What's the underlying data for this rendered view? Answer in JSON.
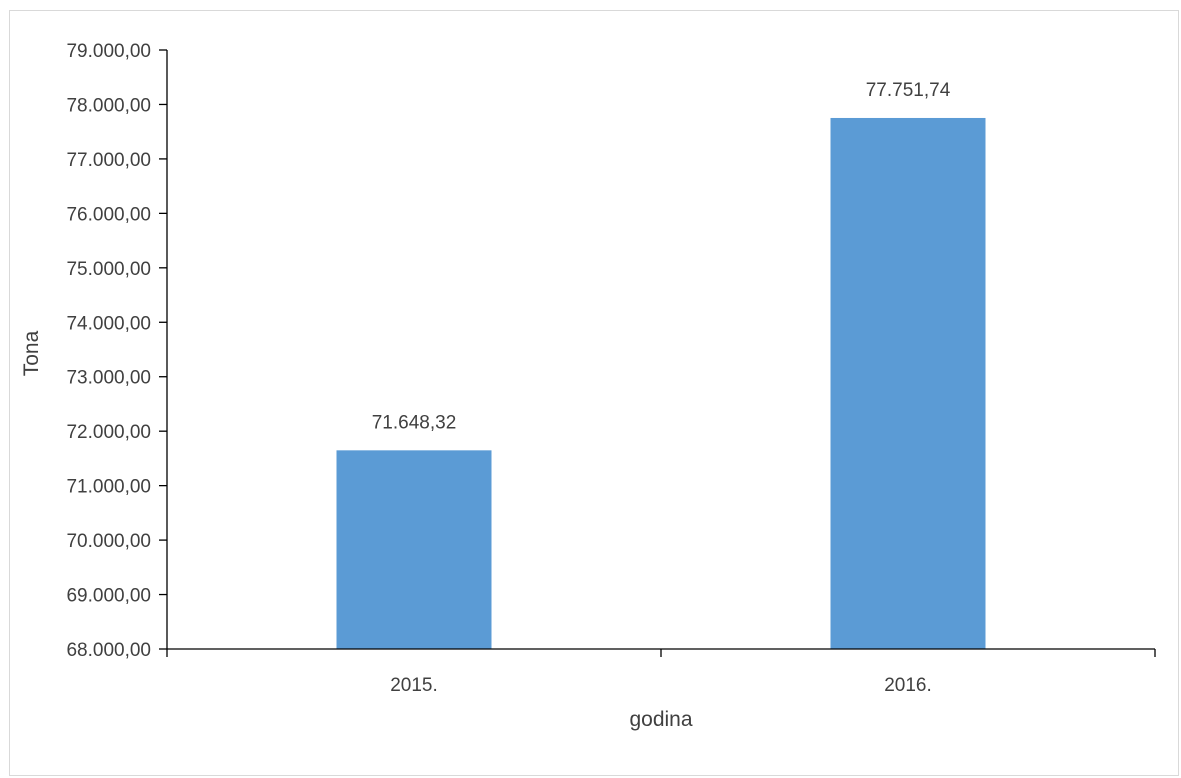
{
  "chart_data": {
    "type": "bar",
    "title": "",
    "xlabel": "godina",
    "ylabel": "Tona",
    "categories": [
      "2015.",
      "2016."
    ],
    "values": [
      71648.32,
      77751.74
    ],
    "value_labels": [
      "71.648,32",
      "77.751,74"
    ],
    "ylim": [
      68000,
      79000
    ],
    "yticks": [
      68000,
      69000,
      70000,
      71000,
      72000,
      73000,
      74000,
      75000,
      76000,
      77000,
      78000,
      79000
    ],
    "ytick_labels": [
      "68.000,00",
      "69.000,00",
      "70.000,00",
      "71.000,00",
      "72.000,00",
      "73.000,00",
      "74.000,00",
      "75.000,00",
      "76.000,00",
      "77.000,00",
      "78.000,00",
      "79.000,00"
    ],
    "bar_color": "#5b9bd5",
    "axis_color": "#000000",
    "text_color": "#404040",
    "grid": false,
    "legend": "none"
  }
}
